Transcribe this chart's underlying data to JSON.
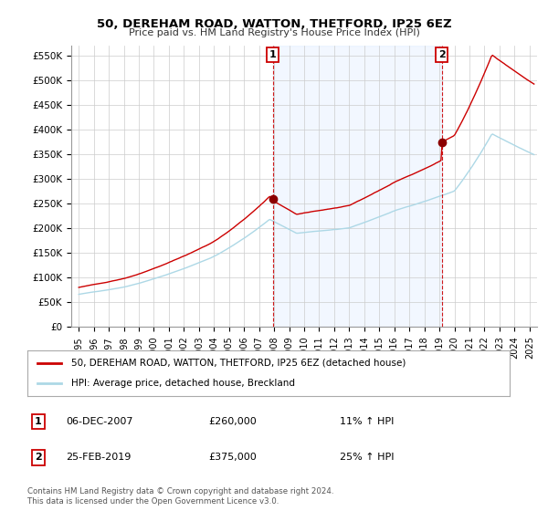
{
  "title": "50, DEREHAM ROAD, WATTON, THETFORD, IP25 6EZ",
  "subtitle": "Price paid vs. HM Land Registry's House Price Index (HPI)",
  "ylim": [
    0,
    570000
  ],
  "yticks": [
    0,
    50000,
    100000,
    150000,
    200000,
    250000,
    300000,
    350000,
    400000,
    450000,
    500000,
    550000
  ],
  "ytick_labels": [
    "£0",
    "£50K",
    "£100K",
    "£150K",
    "£200K",
    "£250K",
    "£300K",
    "£350K",
    "£400K",
    "£450K",
    "£500K",
    "£550K"
  ],
  "hpi_color": "#add8e6",
  "price_color": "#cc0000",
  "marker_color": "#8b0000",
  "dashed_color": "#cc0000",
  "annotation_box_color": "#cc0000",
  "shade_color": "#ddeeff",
  "event1_x": 2007.92,
  "event1_y": 260000,
  "event1_label": "1",
  "event1_date": "06-DEC-2007",
  "event1_price": "£260,000",
  "event1_hpi": "11% ↑ HPI",
  "event2_x": 2019.15,
  "event2_y": 375000,
  "event2_label": "2",
  "event2_date": "25-FEB-2019",
  "event2_price": "£375,000",
  "event2_hpi": "25% ↑ HPI",
  "legend_property": "50, DEREHAM ROAD, WATTON, THETFORD, IP25 6EZ (detached house)",
  "legend_hpi": "HPI: Average price, detached house, Breckland",
  "footer1": "Contains HM Land Registry data © Crown copyright and database right 2024.",
  "footer2": "This data is licensed under the Open Government Licence v3.0.",
  "background_color": "#ffffff",
  "plot_bg_color": "#ffffff",
  "grid_color": "#cccccc",
  "xlim_start": 1995,
  "xlim_end": 2025.5
}
